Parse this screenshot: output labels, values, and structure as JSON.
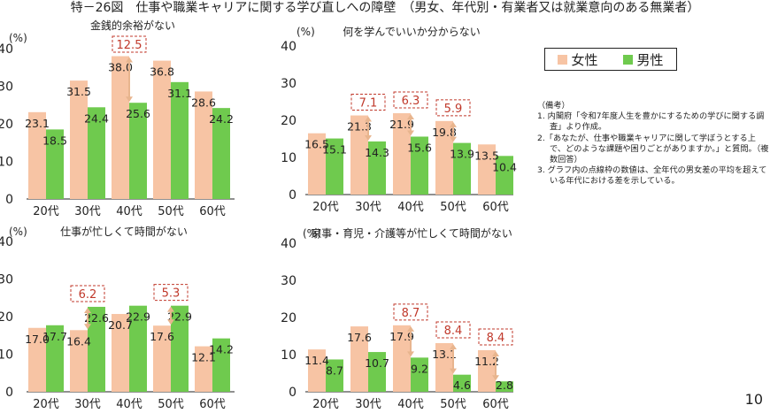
{
  "page_title": "特－26図　仕事や職業キャリアに関する学び直しへの障壁　（男女、年代別・有業者又は就業意向のある無業者）",
  "page_number": "10",
  "colors": {
    "female": "#f7c4a4",
    "male": "#6fca4e",
    "gap_box": "#c0392b",
    "arrow": "#e8b58e",
    "axis": "#222222"
  },
  "legend": {
    "female": "女性",
    "male": "男性"
  },
  "notes": {
    "heading": "（備考）",
    "items": [
      "1. 内閣府「令和7年度人生を豊かにするための学びに関する調査」より作成。",
      "2.「あなたが、仕事や職業キャリアに関して学ぼうとする上で、どのような課題や困りごとがありますか。」と質問。（複数回答）",
      "3. グラフ内の点線枠の数値は、全年代の男女差の平均を超えている年代における差を示している。"
    ]
  },
  "chart_data": [
    {
      "type": "bar",
      "title": "金銭的余裕がない",
      "ylabel": "(%)",
      "ylim": [
        0,
        40
      ],
      "yticks": [
        0,
        10,
        20,
        30,
        40
      ],
      "categories": [
        "20代",
        "30代",
        "40代",
        "50代",
        "60代"
      ],
      "series": [
        {
          "name": "女性",
          "values": [
            23.1,
            31.5,
            38.0,
            36.8,
            28.6
          ]
        },
        {
          "name": "男性",
          "values": [
            18.5,
            24.4,
            25.6,
            31.1,
            24.2
          ]
        }
      ],
      "gaps": [
        {
          "category": "40代",
          "value": "12.5"
        }
      ]
    },
    {
      "type": "bar",
      "title": "何を学んでいいか分からない",
      "ylabel": "(%)",
      "ylim": [
        0,
        40
      ],
      "yticks": [
        0,
        10,
        20,
        30,
        40
      ],
      "categories": [
        "20代",
        "30代",
        "40代",
        "50代",
        "60代"
      ],
      "series": [
        {
          "name": "女性",
          "values": [
            16.5,
            21.3,
            21.9,
            19.8,
            13.5
          ]
        },
        {
          "name": "男性",
          "values": [
            15.1,
            14.3,
            15.6,
            13.9,
            10.4
          ]
        }
      ],
      "gaps": [
        {
          "category": "30代",
          "value": "7.1"
        },
        {
          "category": "40代",
          "value": "6.3"
        },
        {
          "category": "50代",
          "value": "5.9"
        }
      ]
    },
    {
      "type": "bar",
      "title": "仕事が忙しくて時間がない",
      "ylabel": "(%)",
      "ylim": [
        0,
        40
      ],
      "yticks": [
        0,
        10,
        20,
        30,
        40
      ],
      "categories": [
        "20代",
        "30代",
        "40代",
        "50代",
        "60代"
      ],
      "series": [
        {
          "name": "女性",
          "values": [
            17.0,
            16.4,
            20.7,
            17.6,
            12.1
          ]
        },
        {
          "name": "男性",
          "values": [
            17.7,
            22.6,
            22.9,
            22.9,
            14.2
          ]
        }
      ],
      "gaps": [
        {
          "category": "30代",
          "value": "6.2"
        },
        {
          "category": "50代",
          "value": "5.3"
        }
      ]
    },
    {
      "type": "bar",
      "title": "家事・育児・介護等が忙しくて時間がない",
      "ylabel": "(%)",
      "ylim": [
        0,
        40
      ],
      "yticks": [
        0,
        10,
        20,
        30,
        40
      ],
      "categories": [
        "20代",
        "30代",
        "40代",
        "50代",
        "60代"
      ],
      "series": [
        {
          "name": "女性",
          "values": [
            11.4,
            17.6,
            17.9,
            13.1,
            11.2
          ]
        },
        {
          "name": "男性",
          "values": [
            8.7,
            10.7,
            9.2,
            4.6,
            2.8
          ]
        }
      ],
      "gaps": [
        {
          "category": "40代",
          "value": "8.7"
        },
        {
          "category": "50代",
          "value": "8.4"
        },
        {
          "category": "60代",
          "value": "8.4"
        }
      ]
    }
  ]
}
